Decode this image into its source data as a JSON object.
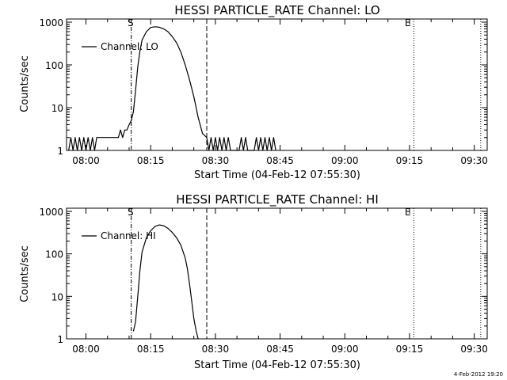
{
  "footer": {
    "timestamp": "4-Feb-2012 19:20"
  },
  "chart_data": [
    {
      "type": "line",
      "title": "HESSI PARTICLE_RATE Channel: LO",
      "xlabel": "Start Time (04-Feb-12 07:55:30)",
      "ylabel": "Counts/sec",
      "y_scale": "log",
      "x_ticks": [
        "08:00",
        "08:15",
        "08:30",
        "08:45",
        "09:00",
        "09:15",
        "09:30"
      ],
      "y_ticks": [
        "1",
        "10",
        "100",
        "1000"
      ],
      "xlim": [
        "07:55:30",
        "09:33:00"
      ],
      "ylim": [
        1,
        1000
      ],
      "legend": {
        "position": "top-left",
        "label": "Channel: LO"
      },
      "markers": [
        {
          "label": "S",
          "time": "08:10:30",
          "style": "dash-dot"
        },
        {
          "label": "",
          "time": "08:28:00",
          "style": "dashed"
        },
        {
          "label": "E",
          "time": "09:16:00",
          "style": "dotted"
        },
        {
          "label": "",
          "time": "09:31:30",
          "style": "dotted"
        }
      ],
      "series": [
        {
          "x": [
            "07:56:00",
            "07:56:30",
            "07:57:00",
            "07:57:30",
            "07:58:00",
            "07:58:30",
            "07:59:00",
            "07:59:30",
            "08:00:00",
            "08:00:30",
            "08:01:00",
            "08:01:30",
            "08:02:00",
            "08:02:30",
            "08:03:00",
            "08:04:00",
            "08:05:00",
            "08:06:00",
            "08:07:00",
            "08:07:30",
            "08:08:00",
            "08:08:30",
            "08:09:00",
            "08:09:30",
            "08:10:00",
            "08:10:30",
            "08:11:00",
            "08:11:30",
            "08:12:00",
            "08:12:30",
            "08:13:00",
            "08:14:00",
            "08:15:00",
            "08:16:00",
            "08:17:00",
            "08:18:00",
            "08:19:00",
            "08:20:00",
            "08:21:00",
            "08:22:00",
            "08:23:00",
            "08:24:00",
            "08:25:00",
            "08:26:00",
            "08:27:00",
            "08:28:00",
            "08:28:30",
            "08:29:00",
            "08:29:30",
            "08:30:00",
            "08:30:30",
            "08:31:00",
            "08:31:30",
            "08:32:00",
            "08:32:30",
            "08:33:00",
            "08:33:30",
            "08:34:00",
            "08:34:30",
            "08:35:00",
            "08:35:30",
            "08:36:00",
            "08:36:30",
            "08:37:00",
            "08:37:30",
            "08:38:00",
            "08:38:30",
            "08:39:00",
            "08:39:30",
            "08:40:00",
            "08:40:30",
            "08:41:00",
            "08:41:30",
            "08:42:00",
            "08:42:30",
            "08:43:00",
            "08:43:30",
            "08:44:00"
          ],
          "y": [
            1.0,
            2.0,
            1.0,
            2.0,
            1.0,
            2.0,
            1.0,
            2.0,
            1.0,
            2.0,
            1.0,
            2.0,
            1.0,
            2.0,
            2.0,
            2.0,
            2.0,
            2.0,
            2.0,
            2.0,
            3.0,
            2.0,
            3.0,
            3.0,
            4.0,
            5.0,
            8.0,
            25.0,
            90.0,
            210.0,
            380.0,
            600.0,
            750.0,
            780.0,
            760.0,
            700.0,
            600.0,
            460.0,
            330.0,
            200.0,
            100.0,
            45.0,
            18.0,
            6.0,
            2.5,
            2.0,
            1.0,
            2.0,
            1.0,
            2.0,
            1.0,
            2.0,
            1.0,
            2.0,
            1.0,
            2.0,
            1.0,
            1.0,
            1.0,
            1.0,
            1.0,
            2.0,
            1.0,
            2.0,
            1.0,
            1.0,
            1.0,
            1.0,
            2.0,
            1.0,
            2.0,
            1.0,
            2.0,
            1.0,
            2.0,
            1.0,
            2.0,
            1.0
          ]
        }
      ]
    },
    {
      "type": "line",
      "title": "HESSI PARTICLE_RATE Channel: HI",
      "xlabel": "Start Time (04-Feb-12 07:55:30)",
      "ylabel": "Counts/sec",
      "y_scale": "log",
      "x_ticks": [
        "08:00",
        "08:15",
        "08:30",
        "08:45",
        "09:00",
        "09:15",
        "09:30"
      ],
      "y_ticks": [
        "1",
        "10",
        "100",
        "1000"
      ],
      "xlim": [
        "07:55:30",
        "09:33:00"
      ],
      "ylim": [
        1,
        1000
      ],
      "legend": {
        "position": "top-left",
        "label": "Channel: HI"
      },
      "markers": [
        {
          "label": "S",
          "time": "08:10:30",
          "style": "dash-dot"
        },
        {
          "label": "",
          "time": "08:28:00",
          "style": "dashed"
        },
        {
          "label": "E",
          "time": "09:16:00",
          "style": "dotted"
        },
        {
          "label": "",
          "time": "09:31:30",
          "style": "dotted"
        }
      ],
      "series": [
        {
          "x": [
            "08:11:00",
            "08:11:30",
            "08:12:00",
            "08:12:30",
            "08:13:00",
            "08:14:00",
            "08:15:00",
            "08:16:00",
            "08:17:00",
            "08:18:00",
            "08:19:00",
            "08:20:00",
            "08:21:00",
            "08:22:00",
            "08:23:00",
            "08:23:30",
            "08:24:00",
            "08:24:30",
            "08:25:00",
            "08:25:30",
            "08:26:00"
          ],
          "y": [
            1.5,
            2.5,
            10.0,
            40.0,
            110.0,
            240.0,
            350.0,
            440.0,
            480.0,
            460.0,
            400.0,
            320.0,
            240.0,
            160.0,
            80.0,
            45.0,
            20.0,
            8.0,
            3.0,
            1.6,
            1.0
          ]
        }
      ]
    }
  ]
}
